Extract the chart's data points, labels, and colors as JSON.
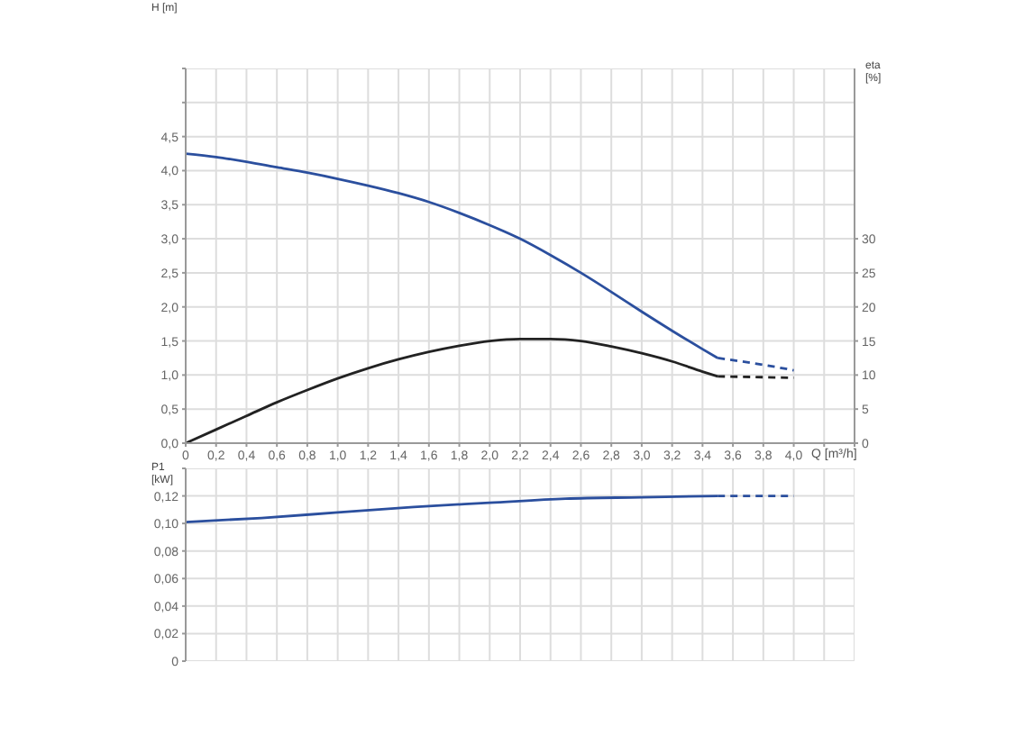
{
  "chart_data": [
    {
      "type": "line",
      "xlabel": "Q [m³/h]",
      "ylabel": "H [m]",
      "y2label": "eta [%]",
      "grid": true,
      "marker": "none",
      "xlim": [
        0,
        4.4
      ],
      "xticks": [
        0,
        {
          "value": 0.2,
          "label": "0,2"
        },
        {
          "value": 0.4,
          "label": "0,4"
        },
        {
          "value": 0.6,
          "label": "0,6"
        },
        {
          "value": 0.8,
          "label": "0,8"
        },
        {
          "value": 1,
          "label": "1,0"
        },
        {
          "value": 1.2,
          "label": "1,2"
        },
        {
          "value": 1.4,
          "label": "1,4"
        },
        {
          "value": 1.6,
          "label": "1,6"
        },
        {
          "value": 1.8,
          "label": "1,8"
        },
        {
          "value": 2,
          "label": "2,0"
        },
        {
          "value": 2.2,
          "label": "2,2"
        },
        {
          "value": 2.4,
          "label": "2,4"
        },
        {
          "value": 2.6,
          "label": "2,6"
        },
        {
          "value": 2.8,
          "label": "2,8"
        },
        {
          "value": 3,
          "label": "3,0"
        },
        {
          "value": 3.2,
          "label": "3,2"
        },
        {
          "value": 3.4,
          "label": "3,4"
        },
        {
          "value": 3.6,
          "label": "3,6"
        },
        {
          "value": 3.8,
          "label": "3,8"
        },
        {
          "value": 4,
          "label": "4,0"
        },
        {
          "value": 4.2,
          "label": null
        },
        {
          "value": 4.4,
          "label": null
        }
      ],
      "ylim": [
        0,
        5.5
      ],
      "yticks": [
        {
          "value": 0,
          "label": "0,0"
        },
        {
          "value": 0.5,
          "label": "0,5"
        },
        {
          "value": 1,
          "label": "1,0"
        },
        {
          "value": 1.5,
          "label": "1,5"
        },
        {
          "value": 2,
          "label": "2,0"
        },
        {
          "value": 2.5,
          "label": "2,5"
        },
        {
          "value": 3,
          "label": "3,0"
        },
        {
          "value": 3.5,
          "label": "3,5"
        },
        {
          "value": 4,
          "label": "4,0"
        },
        {
          "value": 4.5,
          "label": "4,5"
        },
        {
          "value": 5,
          "label": null
        },
        {
          "value": 5.5,
          "label": null
        }
      ],
      "y2lim": [
        0,
        55
      ],
      "y2ticks": [
        0,
        5,
        10,
        15,
        20,
        25,
        30
      ],
      "series": [
        {
          "color": "#2b4f9e",
          "line_style": "solid",
          "x": [
            0,
            0.2,
            0.4,
            0.6,
            0.8,
            1,
            1.2,
            1.4,
            1.6,
            1.8,
            2,
            2.2,
            2.4,
            2.6,
            2.8,
            3,
            3.2,
            3.4,
            3.5
          ],
          "values": [
            4.25,
            4.2,
            4.13,
            4.05,
            3.97,
            3.88,
            3.78,
            3.67,
            3.54,
            3.38,
            3.2,
            3.0,
            2.76,
            2.5,
            2.22,
            1.93,
            1.65,
            1.38,
            1.25
          ]
        },
        {
          "color": "#2b4f9e",
          "line_style": "dashed",
          "x": [
            3.5,
            3.8,
            4
          ],
          "values": [
            1.25,
            1.15,
            1.07
          ]
        },
        {
          "color": "#222222",
          "line_style": "solid",
          "axis": "y2",
          "x": [
            0,
            0.2,
            0.4,
            0.6,
            0.8,
            1,
            1.2,
            1.4,
            1.6,
            1.8,
            2,
            2.2,
            2.4,
            2.6,
            2.8,
            3,
            3.2,
            3.4,
            3.5
          ],
          "values": [
            0,
            2,
            4,
            6,
            7.8,
            9.5,
            11,
            12.3,
            13.4,
            14.3,
            15,
            15.3,
            15.3,
            15,
            14.2,
            13.2,
            12,
            10.5,
            9.8
          ]
        },
        {
          "color": "#222222",
          "line_style": "dashed",
          "axis": "y2",
          "x": [
            3.5,
            4
          ],
          "values": [
            9.8,
            9.6
          ]
        }
      ]
    },
    {
      "type": "line",
      "ylabel": "P1 [kW]",
      "grid": true,
      "marker": "none",
      "tick_labels": "y",
      "xlim": [
        0,
        4.4
      ],
      "xticks": [
        0,
        0.2,
        0.4,
        0.6,
        0.8,
        1,
        1.2,
        1.4,
        1.6,
        1.8,
        2,
        2.2,
        2.4,
        2.6,
        2.8,
        3,
        3.2,
        3.4,
        3.6,
        3.8,
        4,
        4.2,
        4.4
      ],
      "ylim": [
        0,
        0.14
      ],
      "yticks": [
        0,
        {
          "value": 0.02,
          "label": "0,02"
        },
        {
          "value": 0.04,
          "label": "0,04"
        },
        {
          "value": 0.06,
          "label": "0,06"
        },
        {
          "value": 0.08,
          "label": "0,08"
        },
        {
          "value": 0.1,
          "label": "0,10"
        },
        {
          "value": 0.12,
          "label": "0,12"
        },
        {
          "value": 0.14,
          "label": null
        }
      ],
      "series": [
        {
          "color": "#2b4f9e",
          "line_style": "solid",
          "x": [
            0,
            0.5,
            1,
            1.5,
            2,
            2.5,
            3,
            3.5
          ],
          "values": [
            0.101,
            0.104,
            0.108,
            0.112,
            0.115,
            0.118,
            0.119,
            0.12
          ]
        },
        {
          "color": "#2b4f9e",
          "line_style": "dashed",
          "x": [
            3.5,
            4
          ],
          "values": [
            0.12,
            0.12
          ]
        }
      ]
    }
  ]
}
